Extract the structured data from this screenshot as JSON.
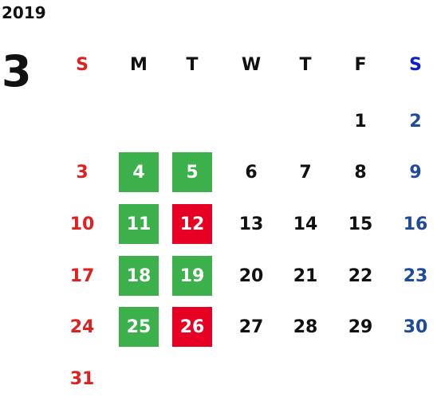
{
  "header": {
    "year": "2019",
    "month": "3"
  },
  "weekdays": [
    "S",
    "M",
    "T",
    "W",
    "T",
    "F",
    "S"
  ],
  "weeks": [
    [
      null,
      null,
      null,
      null,
      null,
      {
        "day": 1
      },
      {
        "day": 2
      }
    ],
    [
      {
        "day": 3
      },
      {
        "day": 4,
        "mark": "green"
      },
      {
        "day": 5,
        "mark": "green"
      },
      {
        "day": 6
      },
      {
        "day": 7
      },
      {
        "day": 8
      },
      {
        "day": 9
      }
    ],
    [
      {
        "day": 10
      },
      {
        "day": 11,
        "mark": "green"
      },
      {
        "day": 12,
        "mark": "red"
      },
      {
        "day": 13
      },
      {
        "day": 14
      },
      {
        "day": 15
      },
      {
        "day": 16
      }
    ],
    [
      {
        "day": 17
      },
      {
        "day": 18,
        "mark": "green"
      },
      {
        "day": 19,
        "mark": "green"
      },
      {
        "day": 20
      },
      {
        "day": 21
      },
      {
        "day": 22
      },
      {
        "day": 23
      }
    ],
    [
      {
        "day": 24
      },
      {
        "day": 25,
        "mark": "green"
      },
      {
        "day": 26,
        "mark": "red"
      },
      {
        "day": 27
      },
      {
        "day": 28
      },
      {
        "day": 29
      },
      {
        "day": 30
      }
    ],
    [
      {
        "day": 31
      },
      null,
      null,
      null,
      null,
      null,
      null
    ]
  ]
}
